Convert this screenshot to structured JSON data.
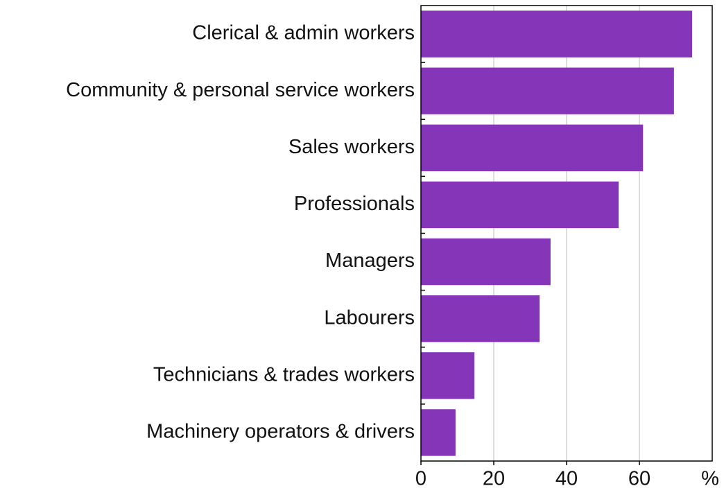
{
  "chart_data": {
    "type": "bar",
    "orientation": "horizontal",
    "categories": [
      "Clerical & admin workers",
      "Community & personal service workers",
      "Sales workers",
      "Professionals",
      "Managers",
      "Labourers",
      "Technicians & trades workers",
      "Machinery operators & drivers"
    ],
    "values": [
      74.5,
      69.5,
      61,
      54.3,
      35.6,
      32.6,
      14.7,
      9.5
    ],
    "color": "#8435b8",
    "xlim": [
      0,
      80
    ],
    "xticks": [
      0,
      20,
      40,
      60
    ],
    "x_unit": "%",
    "grid": true
  }
}
